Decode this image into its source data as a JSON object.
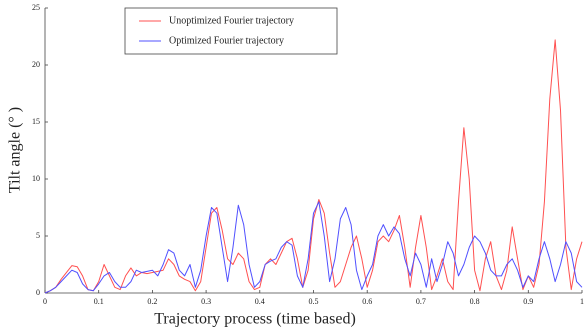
{
  "chart_data": {
    "type": "line",
    "xlabel": "Trajectory process (time based)",
    "ylabel": "Tilt angle (° )",
    "x": [
      0,
      0.01,
      0.02,
      0.03,
      0.04,
      0.05,
      0.06,
      0.07,
      0.08,
      0.09,
      0.1,
      0.11,
      0.12,
      0.13,
      0.14,
      0.15,
      0.16,
      0.17,
      0.18,
      0.19,
      0.2,
      0.21,
      0.22,
      0.23,
      0.24,
      0.25,
      0.26,
      0.27,
      0.28,
      0.29,
      0.3,
      0.31,
      0.32,
      0.33,
      0.34,
      0.35,
      0.36,
      0.37,
      0.38,
      0.39,
      0.4,
      0.41,
      0.42,
      0.43,
      0.44,
      0.45,
      0.46,
      0.47,
      0.48,
      0.49,
      0.5,
      0.51,
      0.52,
      0.53,
      0.54,
      0.55,
      0.56,
      0.57,
      0.58,
      0.59,
      0.6,
      0.61,
      0.62,
      0.63,
      0.64,
      0.65,
      0.66,
      0.67,
      0.68,
      0.69,
      0.7,
      0.71,
      0.72,
      0.73,
      0.74,
      0.75,
      0.76,
      0.77,
      0.78,
      0.79,
      0.8,
      0.81,
      0.82,
      0.83,
      0.84,
      0.85,
      0.86,
      0.87,
      0.88,
      0.89,
      0.9,
      0.91,
      0.92,
      0.93,
      0.94,
      0.95,
      0.96,
      0.97,
      0.98,
      0.99,
      1
    ],
    "series": [
      {
        "name": "Unoptimized Fourier trajectory",
        "color": "#ff5050",
        "values": [
          0,
          0.2,
          0.5,
          1.2,
          1.8,
          2.4,
          2.3,
          1.5,
          0.3,
          0.2,
          1.0,
          2.5,
          1.5,
          0.5,
          0.3,
          1.5,
          2.2,
          1.5,
          1.8,
          1.7,
          1.8,
          1.9,
          2.0,
          3.0,
          2.5,
          1.5,
          1.2,
          1.0,
          0.2,
          1.0,
          4,
          7,
          7.5,
          5.5,
          3,
          2.5,
          3.5,
          3,
          1,
          0.3,
          0.5,
          2.5,
          3,
          2.5,
          3.5,
          4.5,
          4.8,
          3,
          0.5,
          2,
          6.5,
          8.2,
          7,
          3.5,
          0.5,
          1,
          2.5,
          4,
          5,
          3,
          0.5,
          2,
          4.5,
          5,
          4.5,
          5.5,
          6.8,
          4,
          0.5,
          4,
          6.8,
          4,
          0.3,
          1.5,
          3,
          1,
          0.3,
          8,
          14.5,
          10,
          2,
          0.2,
          3,
          4.5,
          1.5,
          0.3,
          2,
          5.8,
          3,
          0.3,
          1.5,
          0.5,
          2.5,
          8,
          17,
          22.2,
          16,
          4,
          0.3,
          3,
          4.5
        ]
      },
      {
        "name": "Optimized Fourier trajectory",
        "color": "#5050ff",
        "values": [
          0,
          0.2,
          0.5,
          1.0,
          1.5,
          2.0,
          1.8,
          0.8,
          0.3,
          0.2,
          0.8,
          1.5,
          1.8,
          1.0,
          0.5,
          0.5,
          1.0,
          2.0,
          1.8,
          1.9,
          2.0,
          1.5,
          2.5,
          3.8,
          3.5,
          2.0,
          1.5,
          2.5,
          0.5,
          2,
          5,
          7.5,
          7,
          4,
          1,
          4,
          7.7,
          6,
          2.5,
          0.5,
          1,
          2.5,
          2.8,
          3,
          4,
          4.5,
          4.2,
          1.5,
          0.5,
          3,
          7,
          8,
          5,
          1,
          3,
          6.5,
          7.5,
          6,
          2,
          0.3,
          1.5,
          2.5,
          5,
          6,
          5,
          5.8,
          5.2,
          3,
          1.5,
          3.5,
          2.5,
          0.5,
          3,
          1,
          2.5,
          4.5,
          3.5,
          1.5,
          2.5,
          4,
          5,
          4.5,
          3.5,
          2,
          1.5,
          1.5,
          2.5,
          3,
          2,
          0.5,
          1.5,
          1,
          3,
          4.5,
          3,
          1,
          2.5,
          4.5,
          3.5,
          1,
          0.5
        ]
      }
    ],
    "xlim": [
      0,
      1
    ],
    "xticks": [
      0,
      0.1,
      0.2,
      0.3,
      0.4,
      0.5,
      0.6,
      0.7,
      0.8,
      0.9,
      1
    ],
    "ylim": [
      0,
      25
    ],
    "yticks": [
      0,
      5,
      10,
      15,
      20,
      25
    ],
    "legend": "upper left",
    "grid": false
  }
}
